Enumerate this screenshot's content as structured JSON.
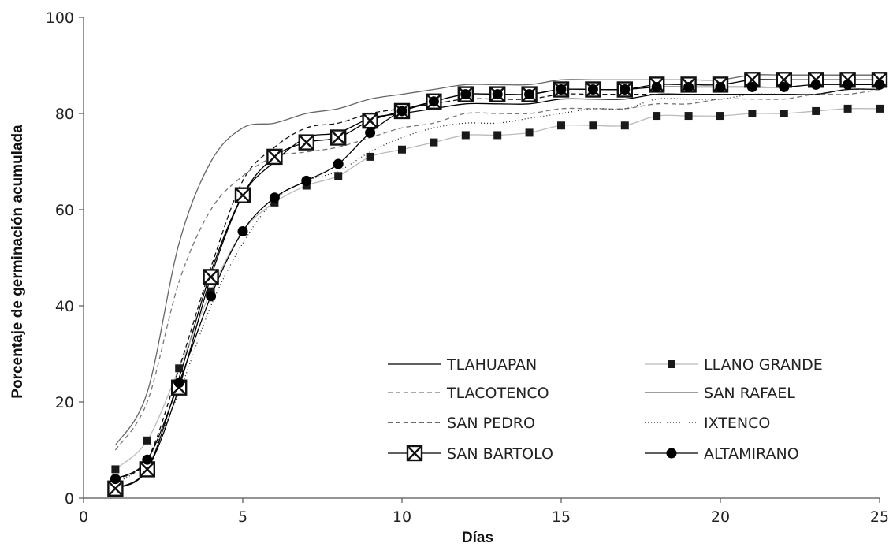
{
  "chart_data": {
    "type": "line",
    "title": "",
    "xlabel": "Días",
    "ylabel": "Porcentaje de germinación acumulada",
    "xlim": [
      0,
      25
    ],
    "ylim": [
      0,
      100
    ],
    "xticks": [
      0,
      5,
      10,
      15,
      20,
      25
    ],
    "yticks": [
      0,
      20,
      40,
      60,
      80,
      100
    ],
    "grid": false,
    "legend": "lower-right, two columns",
    "x": [
      1,
      2,
      3,
      4,
      5,
      6,
      7,
      8,
      9,
      10,
      11,
      12,
      13,
      14,
      15,
      16,
      17,
      18,
      19,
      20,
      21,
      22,
      23,
      24,
      25
    ],
    "series": [
      {
        "name": "TLAHUAPAN",
        "color": "#000000",
        "dash": "solid",
        "width": 1.3,
        "marker": "none",
        "values": [
          2,
          6,
          25,
          47,
          63,
          70,
          75,
          76,
          79,
          80,
          81,
          82,
          82,
          82,
          83,
          83,
          83,
          84,
          84,
          84,
          84,
          84,
          84,
          85,
          85
        ]
      },
      {
        "name": "LLANO GRANDE",
        "color": "#bbbbbb",
        "dash": "solid",
        "width": 1.3,
        "marker": "square",
        "values": [
          6,
          12,
          27,
          43,
          55.5,
          61.5,
          65,
          67,
          71,
          72.5,
          74,
          75.5,
          75.5,
          76,
          77.5,
          77.5,
          77.5,
          79.5,
          79.5,
          79.5,
          80,
          80,
          80.5,
          81,
          81
        ]
      },
      {
        "name": "TLACOTENCO",
        "color": "#777777",
        "dash": "6,4",
        "width": 1.3,
        "marker": "none",
        "values": [
          10,
          20,
          45,
          60,
          67,
          71,
          72,
          73,
          75,
          77,
          78,
          80,
          80,
          80,
          81,
          81,
          81,
          82,
          82,
          83,
          83,
          83,
          84,
          84,
          85
        ]
      },
      {
        "name": "SAN RAFAEL",
        "color": "#666666",
        "dash": "solid",
        "width": 1.3,
        "marker": "none",
        "values": [
          11,
          22,
          53,
          70,
          77,
          78,
          80,
          81,
          83,
          84,
          85,
          86,
          86,
          86,
          87,
          87,
          87,
          87,
          87,
          87,
          88,
          88,
          88,
          88,
          88
        ]
      },
      {
        "name": "SAN PEDRO",
        "color": "#111111",
        "dash": "6,4",
        "width": 1.3,
        "marker": "none",
        "values": [
          4,
          8,
          27,
          48,
          66,
          73,
          77,
          78,
          80,
          81,
          82,
          83,
          83,
          83,
          84,
          84,
          84,
          84,
          84,
          84,
          84,
          84,
          84,
          85,
          85
        ]
      },
      {
        "name": "IXTENCO",
        "color": "#222222",
        "dash": "1,3",
        "width": 1.3,
        "marker": "none",
        "values": [
          3,
          8,
          22,
          40,
          53,
          62,
          66,
          68,
          72,
          75,
          77,
          78,
          78,
          79,
          80,
          81,
          81,
          83,
          83,
          83,
          84,
          84,
          84,
          85,
          85
        ]
      },
      {
        "name": "SAN BARTOLO",
        "color": "#000000",
        "dash": "solid",
        "width": 1.3,
        "marker": "xbox",
        "values": [
          2,
          6,
          23,
          46,
          63,
          71,
          74,
          75,
          78.5,
          80.5,
          82.5,
          84,
          84,
          84,
          85,
          85,
          85,
          86,
          86,
          86,
          87,
          87,
          87,
          87,
          87
        ]
      },
      {
        "name": "ALTAMIRANO",
        "color": "#000000",
        "dash": "solid",
        "width": 1.3,
        "marker": "circle",
        "values": [
          4,
          8,
          24,
          42,
          55.5,
          62.5,
          66,
          69.5,
          76,
          80.5,
          82.5,
          84,
          84,
          84,
          85,
          85,
          85,
          85.5,
          85.5,
          85.5,
          85.5,
          85.5,
          86,
          86,
          86
        ]
      }
    ]
  }
}
